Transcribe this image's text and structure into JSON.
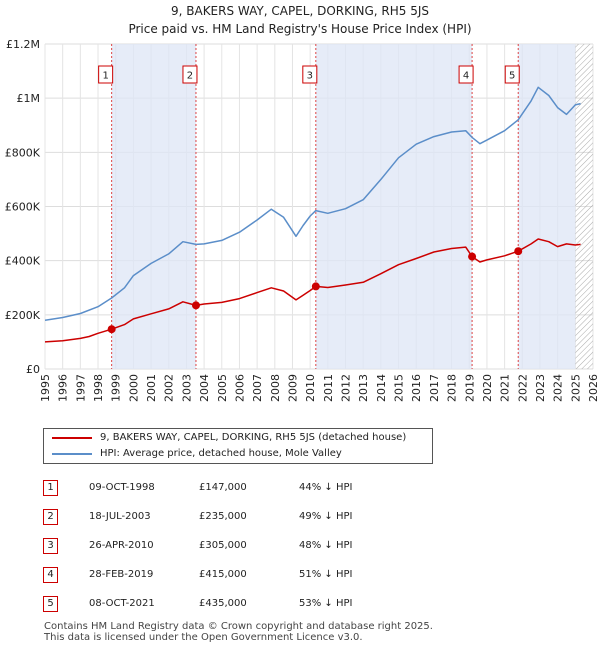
{
  "title": "9, BAKERS WAY, CAPEL, DORKING, RH5 5JS",
  "subtitle": "Price paid vs. HM Land Registry's House Price Index (HPI)",
  "colors": {
    "property": "#cc0000",
    "hpi": "#5b8ec9",
    "shade": "#dde6f5",
    "marker_line": "#dd4444"
  },
  "chart_data": {
    "type": "line",
    "xlim": [
      1995,
      2026
    ],
    "ylim": [
      0,
      1200000
    ],
    "y_ticks": [
      {
        "value": 0,
        "label": "£0"
      },
      {
        "value": 200000,
        "label": "£200K"
      },
      {
        "value": 400000,
        "label": "£400K"
      },
      {
        "value": 600000,
        "label": "£600K"
      },
      {
        "value": 800000,
        "label": "£800K"
      },
      {
        "value": 1000000,
        "label": "£1M"
      },
      {
        "value": 1200000,
        "label": "£1.2M"
      }
    ],
    "x_ticks": [
      "1995",
      "1996",
      "1997",
      "1998",
      "1999",
      "2000",
      "2001",
      "2002",
      "2003",
      "2004",
      "2005",
      "2006",
      "2007",
      "2008",
      "2009",
      "2010",
      "2011",
      "2012",
      "2013",
      "2014",
      "2015",
      "2016",
      "2017",
      "2018",
      "2019",
      "2020",
      "2021",
      "2022",
      "2023",
      "2024",
      "2025",
      "2026"
    ],
    "hatch_from": 2025.0,
    "series": [
      {
        "name": "9, BAKERS WAY, CAPEL, DORKING, RH5 5JS (detached house)",
        "color": "#cc0000",
        "x": [
          1995.0,
          1996.0,
          1997.0,
          1997.5,
          1998.0,
          1998.77,
          1999.5,
          2000.0,
          2001.0,
          2002.0,
          2002.8,
          2003.54,
          2004.0,
          2005.0,
          2006.0,
          2007.0,
          2007.8,
          2008.5,
          2009.2,
          2009.6,
          2010.0,
          2010.32,
          2011.0,
          2012.0,
          2013.0,
          2014.0,
          2015.0,
          2016.0,
          2017.0,
          2018.0,
          2018.8,
          2019.16,
          2019.6,
          2020.0,
          2021.0,
          2021.77,
          2022.5,
          2022.9,
          2023.5,
          2024.0,
          2024.5,
          2025.0,
          2025.3
        ],
        "y": [
          100000,
          104000,
          113000,
          120000,
          132000,
          147000,
          164000,
          185000,
          204000,
          222000,
          248000,
          235000,
          240000,
          246000,
          260000,
          282000,
          300000,
          288000,
          255000,
          272000,
          290000,
          305000,
          301000,
          310000,
          320000,
          352000,
          385000,
          408000,
          432000,
          445000,
          450000,
          415000,
          395000,
          403000,
          418000,
          435000,
          462000,
          480000,
          470000,
          452000,
          462000,
          458000,
          460000
        ]
      },
      {
        "name": "HPI: Average price, detached house, Mole Valley",
        "color": "#5b8ec9",
        "x": [
          1995.0,
          1996.0,
          1997.0,
          1998.0,
          1998.77,
          1999.5,
          2000.0,
          2001.0,
          2002.0,
          2002.8,
          2003.54,
          2004.0,
          2005.0,
          2006.0,
          2007.0,
          2007.8,
          2008.5,
          2009.2,
          2009.6,
          2010.0,
          2010.32,
          2011.0,
          2012.0,
          2013.0,
          2014.0,
          2015.0,
          2016.0,
          2017.0,
          2018.0,
          2018.8,
          2019.16,
          2019.6,
          2020.0,
          2021.0,
          2021.77,
          2022.5,
          2022.9,
          2023.5,
          2024.0,
          2024.5,
          2025.0,
          2025.3
        ],
        "y": [
          180000,
          190000,
          205000,
          230000,
          262000,
          300000,
          345000,
          390000,
          425000,
          470000,
          460000,
          462000,
          475000,
          505000,
          550000,
          590000,
          560000,
          490000,
          530000,
          565000,
          585000,
          575000,
          592000,
          625000,
          700000,
          780000,
          830000,
          858000,
          875000,
          880000,
          855000,
          832000,
          845000,
          880000,
          920000,
          990000,
          1040000,
          1010000,
          965000,
          940000,
          975000,
          980000
        ]
      }
    ],
    "sales": [
      {
        "num": "1",
        "x": 1998.77,
        "y": 147000
      },
      {
        "num": "2",
        "x": 2003.54,
        "y": 235000
      },
      {
        "num": "3",
        "x": 2010.32,
        "y": 305000
      },
      {
        "num": "4",
        "x": 2019.16,
        "y": 415000
      },
      {
        "num": "5",
        "x": 2021.77,
        "y": 435000
      }
    ]
  },
  "legend": {
    "property": "9, BAKERS WAY, CAPEL, DORKING, RH5 5JS (detached house)",
    "hpi": "HPI: Average price, detached house, Mole Valley"
  },
  "table": [
    {
      "num": "1",
      "date": "09-OCT-1998",
      "price": "£147,000",
      "hpi": "44% ↓ HPI"
    },
    {
      "num": "2",
      "date": "18-JUL-2003",
      "price": "£235,000",
      "hpi": "49% ↓ HPI"
    },
    {
      "num": "3",
      "date": "26-APR-2010",
      "price": "£305,000",
      "hpi": "48% ↓ HPI"
    },
    {
      "num": "4",
      "date": "28-FEB-2019",
      "price": "£415,000",
      "hpi": "51% ↓ HPI"
    },
    {
      "num": "5",
      "date": "08-OCT-2021",
      "price": "£435,000",
      "hpi": "53% ↓ HPI"
    }
  ],
  "footer": {
    "line1": "Contains HM Land Registry data © Crown copyright and database right 2025.",
    "line2": "This data is licensed under the Open Government Licence v3.0."
  }
}
